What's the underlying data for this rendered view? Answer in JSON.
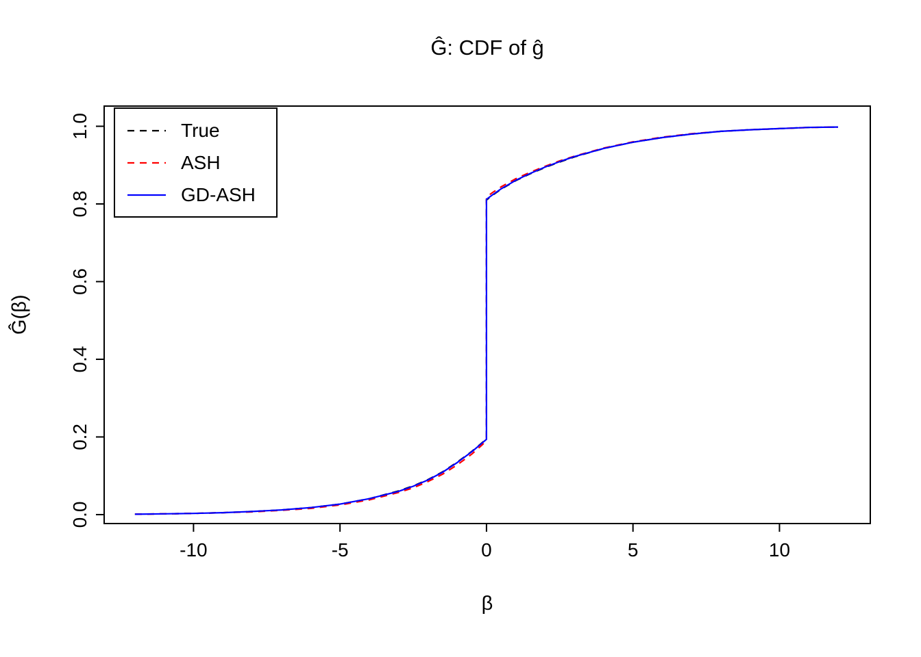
{
  "chart_data": {
    "type": "line",
    "title": "Ĝ: CDF of ĝ",
    "xlabel": "β",
    "ylabel": "Ĝ(β)",
    "xlim": [
      -13.05,
      13.1
    ],
    "ylim": [
      -0.023,
      1.052
    ],
    "x_ticks": [
      -10,
      -5,
      0,
      5,
      10
    ],
    "x_tick_labels": [
      "-10",
      "-5",
      "0",
      "5",
      "10"
    ],
    "y_ticks": [
      0.0,
      0.2,
      0.4,
      0.6,
      0.8,
      1.0
    ],
    "y_tick_labels": [
      "0.0",
      "0.2",
      "0.4",
      "0.6",
      "0.8",
      "1.0"
    ],
    "grid": false,
    "legend": {
      "position": "topleft"
    },
    "x": [
      -12,
      -11,
      -10,
      -9,
      -8,
      -7,
      -6,
      -5,
      -4,
      -3,
      -2.5,
      -2,
      -1.5,
      -1,
      -0.5,
      -0.2,
      0,
      0,
      0.2,
      0.5,
      1,
      1.5,
      2,
      2.5,
      3,
      4,
      5,
      6,
      7,
      8,
      9,
      10,
      11,
      12
    ],
    "series": [
      {
        "name": "True",
        "color": "#000000",
        "line_style": "dashed",
        "values": [
          0.001,
          0.002,
          0.003,
          0.005,
          0.008,
          0.012,
          0.018,
          0.027,
          0.041,
          0.061,
          0.074,
          0.09,
          0.11,
          0.135,
          0.163,
          0.182,
          0.195,
          0.81,
          0.822,
          0.838,
          0.86,
          0.878,
          0.894,
          0.908,
          0.921,
          0.943,
          0.959,
          0.971,
          0.98,
          0.987,
          0.991,
          0.994,
          0.997,
          0.998
        ]
      },
      {
        "name": "ASH",
        "color": "#FF0000",
        "line_style": "dashed",
        "values": [
          0.001,
          0.002,
          0.003,
          0.005,
          0.007,
          0.011,
          0.016,
          0.025,
          0.038,
          0.057,
          0.069,
          0.085,
          0.104,
          0.128,
          0.156,
          0.176,
          0.19,
          0.818,
          0.829,
          0.844,
          0.865,
          0.882,
          0.897,
          0.911,
          0.923,
          0.944,
          0.96,
          0.972,
          0.981,
          0.987,
          0.991,
          0.994,
          0.997,
          0.998
        ]
      },
      {
        "name": "GD-ASH",
        "color": "#0000FF",
        "line_style": "solid",
        "values": [
          0.001,
          0.002,
          0.003,
          0.005,
          0.008,
          0.012,
          0.018,
          0.027,
          0.041,
          0.06,
          0.073,
          0.089,
          0.109,
          0.134,
          0.162,
          0.181,
          0.194,
          0.812,
          0.823,
          0.839,
          0.861,
          0.879,
          0.895,
          0.909,
          0.922,
          0.943,
          0.959,
          0.971,
          0.98,
          0.987,
          0.991,
          0.994,
          0.997,
          0.998
        ]
      }
    ]
  }
}
